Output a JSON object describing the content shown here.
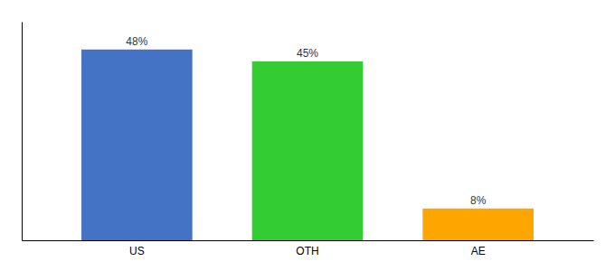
{
  "chart_data": {
    "type": "bar",
    "categories": [
      "US",
      "OTH",
      "AE"
    ],
    "values": [
      48,
      45,
      8
    ],
    "value_labels": [
      "48%",
      "45%",
      "8%"
    ],
    "colors": [
      "#4472C4",
      "#33CC33",
      "#FFA500"
    ],
    "ylim": [
      0,
      55
    ],
    "data_labels": true,
    "tick_labels": "x",
    "grid": false
  }
}
